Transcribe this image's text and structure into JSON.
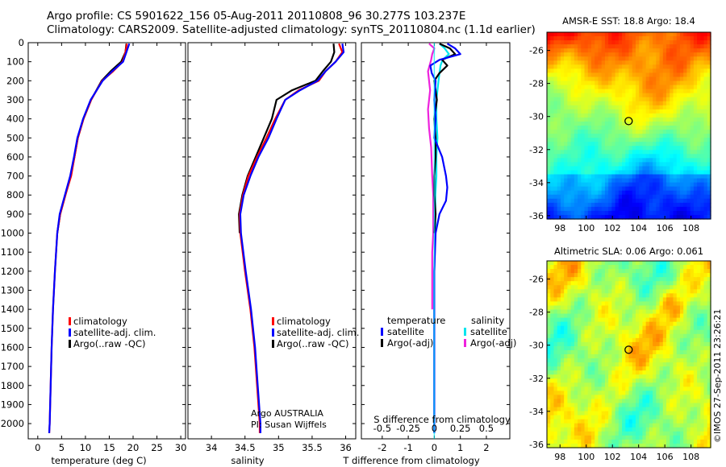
{
  "header": {
    "line1": "Argo profile: CS 5901622_156 05-Aug-2011 20110808_96 30.277S 103.237E",
    "line2": "Climatology: CARS2009. Satellite-adjusted climatology: synTS_20110804.nc (1.1d earlier)"
  },
  "credit": "©IMOS 27-Sep-2011 23:26:21",
  "colors": {
    "red": "#ff0000",
    "blue": "#0000ff",
    "black": "#000000",
    "cyan": "#00e5ee",
    "magenta": "#ee22dd"
  },
  "chart_data": [
    {
      "type": "line",
      "xlabel": "temperature (deg C)",
      "xlim": [
        -2,
        31
      ],
      "xticks": [
        0,
        5,
        10,
        15,
        20,
        25,
        30
      ],
      "ylim": [
        0,
        2080
      ],
      "yticks": [
        0,
        100,
        200,
        300,
        400,
        500,
        600,
        700,
        800,
        900,
        1000,
        1100,
        1200,
        1300,
        1400,
        1500,
        1600,
        1700,
        1800,
        1900,
        2000
      ],
      "legend": [
        "climatology",
        "satellite-adj. clim.",
        "Argo(..raw -QC)"
      ],
      "series": [
        {
          "name": "climatology",
          "color": "red",
          "depth": [
            5,
            50,
            100,
            150,
            200,
            300,
            400,
            500,
            600,
            700,
            800,
            900,
            1000,
            1200,
            1400,
            1600,
            1800,
            2000,
            2050
          ],
          "values": [
            18.7,
            18.4,
            17.8,
            15.8,
            13.5,
            11.2,
            9.6,
            8.4,
            7.7,
            7.0,
            5.8,
            4.7,
            4.1,
            3.6,
            3.2,
            2.9,
            2.7,
            2.5,
            2.4
          ]
        },
        {
          "name": "satellite-adj. clim.",
          "color": "blue",
          "depth": [
            5,
            50,
            100,
            150,
            200,
            300,
            400,
            500,
            600,
            700,
            800,
            900,
            1000,
            1200,
            1400,
            1600,
            1800,
            2000,
            2050
          ],
          "values": [
            19.2,
            18.6,
            17.9,
            15.6,
            13.6,
            11.1,
            9.5,
            8.3,
            7.6,
            6.8,
            5.7,
            4.6,
            4.1,
            3.6,
            3.2,
            2.9,
            2.7,
            2.5,
            2.4
          ]
        },
        {
          "name": "Argo(..raw -QC)",
          "color": "black",
          "depth": [
            5,
            50,
            100,
            150,
            200,
            300,
            400,
            500,
            600,
            700,
            800,
            900,
            1000
          ],
          "values": [
            18.6,
            18.4,
            17.5,
            15.3,
            13.4,
            11.2,
            9.6,
            8.4,
            7.7,
            6.9,
            5.8,
            4.7,
            4.1
          ]
        }
      ]
    },
    {
      "type": "line",
      "xlabel": "salinity",
      "xlim": [
        33.65,
        36.15
      ],
      "xticks": [
        34,
        34.5,
        35,
        35.5,
        36
      ],
      "ylim": [
        0,
        2080
      ],
      "legend": [
        "climatology",
        "satellite-adj. clim.",
        "Argo(..raw -QC)"
      ],
      "annotation": [
        "Argo AUSTRALIA",
        "PI: Susan Wijffels"
      ],
      "series": [
        {
          "name": "climatology",
          "color": "red",
          "depth": [
            5,
            50,
            100,
            150,
            200,
            250,
            300,
            400,
            500,
            600,
            700,
            800,
            900,
            1000,
            1200,
            1400,
            1600,
            1800,
            2000,
            2050
          ],
          "values": [
            35.9,
            35.95,
            35.85,
            35.7,
            35.6,
            35.3,
            35.1,
            34.95,
            34.82,
            34.68,
            34.55,
            34.47,
            34.42,
            34.43,
            34.5,
            34.58,
            34.64,
            34.68,
            34.72,
            34.72
          ]
        },
        {
          "name": "satellite-adj. clim.",
          "color": "blue",
          "depth": [
            5,
            50,
            100,
            150,
            200,
            250,
            300,
            400,
            500,
            600,
            700,
            800,
            900,
            1000,
            1200,
            1400,
            1600,
            1800,
            2000,
            2050
          ],
          "values": [
            35.95,
            35.97,
            35.85,
            35.7,
            35.58,
            35.32,
            35.1,
            34.97,
            34.85,
            34.7,
            34.58,
            34.48,
            34.43,
            34.44,
            34.51,
            34.59,
            34.65,
            34.69,
            34.73,
            34.73
          ]
        },
        {
          "name": "Argo(..raw -QC)",
          "color": "black",
          "depth": [
            5,
            50,
            100,
            150,
            200,
            250,
            300,
            400,
            500,
            600,
            700,
            800,
            900,
            1000
          ],
          "values": [
            35.82,
            35.83,
            35.78,
            35.66,
            35.55,
            35.2,
            34.97,
            34.9,
            34.78,
            34.66,
            34.54,
            34.46,
            34.41,
            34.42
          ]
        }
      ]
    },
    {
      "type": "line",
      "xlabel": "T difference from climatology",
      "xlabel_top": "S difference from climatology",
      "xlim": [
        -2.8,
        2.9
      ],
      "xticks": [
        -2,
        -1,
        0,
        1,
        2
      ],
      "top_ticks": [
        {
          "label": "-0.5",
          "value": -0.5
        },
        {
          "label": "-0.25",
          "value": -0.25
        },
        {
          "label": "0",
          "value": 0
        },
        {
          "label": "0.25",
          "value": 0.25
        },
        {
          "label": "0.5",
          "value": 0.5
        }
      ],
      "s_scale": 4,
      "ylim": [
        0,
        2080
      ],
      "legend_temperature": {
        "title": "temperature",
        "items": [
          "satellite",
          "Argo(-adj)"
        ]
      },
      "legend_salinity": {
        "title": "salinity",
        "items": [
          "satellite",
          "Argo(-adj)"
        ]
      },
      "series": [
        {
          "name": "satellite",
          "group": "temperature",
          "color": "blue",
          "depth": [
            5,
            30,
            60,
            90,
            120,
            160,
            200,
            300,
            400,
            500,
            600,
            700,
            760,
            830,
            900,
            1000,
            1200,
            1500,
            1800,
            2050
          ],
          "values": [
            0.5,
            0.8,
            1.0,
            0.2,
            -0.15,
            -0.1,
            0.05,
            0.0,
            0.05,
            0.0,
            0.3,
            0.45,
            0.5,
            0.45,
            0.2,
            0.05,
            0.0,
            0.0,
            0.0,
            0.0
          ]
        },
        {
          "name": "Argo(-adj)",
          "group": "temperature",
          "color": "black",
          "depth": [
            5,
            30,
            60,
            90,
            120,
            160,
            200,
            300,
            400,
            500,
            600,
            700,
            800,
            900,
            1000
          ],
          "values": [
            0.2,
            0.6,
            0.8,
            0.3,
            0.5,
            0.2,
            0.0,
            0.1,
            0.0,
            0.05,
            0.05,
            0.0,
            0.0,
            0.05,
            0.0
          ]
        },
        {
          "name": "satellite",
          "group": "salinity",
          "color": "cyan",
          "depth": [
            5,
            30,
            60,
            90,
            120,
            160,
            200,
            300,
            400,
            500,
            600,
            700,
            800,
            900,
            1000,
            1200,
            1500,
            1800,
            2050
          ],
          "values": [
            0.05,
            0.1,
            0.14,
            0.08,
            0.06,
            0.05,
            0.04,
            0.02,
            0.02,
            0.03,
            0.02,
            0.02,
            0.01,
            0.01,
            0.01,
            0.0,
            0.0,
            0.0,
            0.0
          ]
        },
        {
          "name": "Argo(-adj)",
          "group": "salinity",
          "color": "magenta",
          "depth": [
            5,
            30,
            60,
            90,
            150,
            250,
            350,
            450,
            550,
            700,
            800,
            900,
            1000,
            1100,
            1200,
            1300,
            1400
          ],
          "values": [
            -0.05,
            0.0,
            -0.02,
            -0.03,
            -0.06,
            -0.04,
            -0.06,
            -0.05,
            -0.03,
            -0.02,
            -0.01,
            -0.01,
            -0.01,
            -0.02,
            -0.02,
            -0.02,
            -0.02
          ]
        }
      ]
    },
    {
      "type": "heatmap",
      "title": "AMSR-E SST: 18.8 Argo: 18.4",
      "xlim": [
        97,
        109.5
      ],
      "ylim": [
        -36.2,
        -24.9
      ],
      "xticks": [
        98,
        100,
        102,
        104,
        106,
        108
      ],
      "yticks": [
        -26,
        -28,
        -30,
        -32,
        -34,
        -36
      ],
      "marker": {
        "lon": 103.237,
        "lat": -30.277
      }
    },
    {
      "type": "heatmap",
      "title": "Altimetric SLA: 0.06 Argo: 0.061",
      "xlim": [
        97,
        109.5
      ],
      "ylim": [
        -36.2,
        -24.9
      ],
      "xticks": [
        98,
        100,
        102,
        104,
        106,
        108
      ],
      "yticks": [
        -26,
        -28,
        -30,
        -32,
        -34,
        -36
      ],
      "marker": {
        "lon": 103.237,
        "lat": -30.277
      }
    }
  ]
}
